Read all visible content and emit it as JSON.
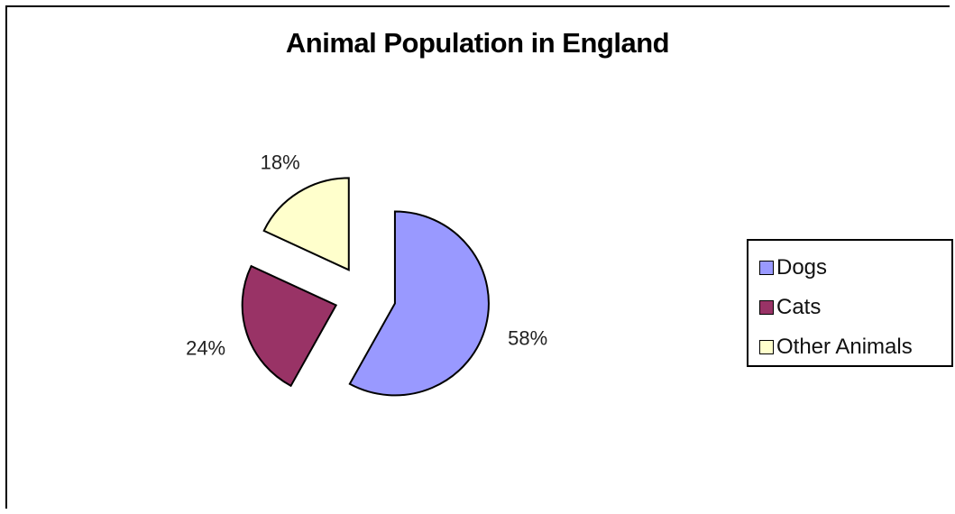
{
  "chart_data": {
    "type": "pie",
    "title": "Animal Population in England",
    "exploded": true,
    "legend_position": "right",
    "slices": [
      {
        "label": "Dogs",
        "value": 58,
        "value_label": "58%",
        "color": "#9999ff"
      },
      {
        "label": "Cats",
        "value": 24,
        "value_label": "24%",
        "color": "#993366"
      },
      {
        "label": "Other Animals",
        "value": 18,
        "value_label": "18%",
        "color": "#ffffcc"
      }
    ]
  }
}
